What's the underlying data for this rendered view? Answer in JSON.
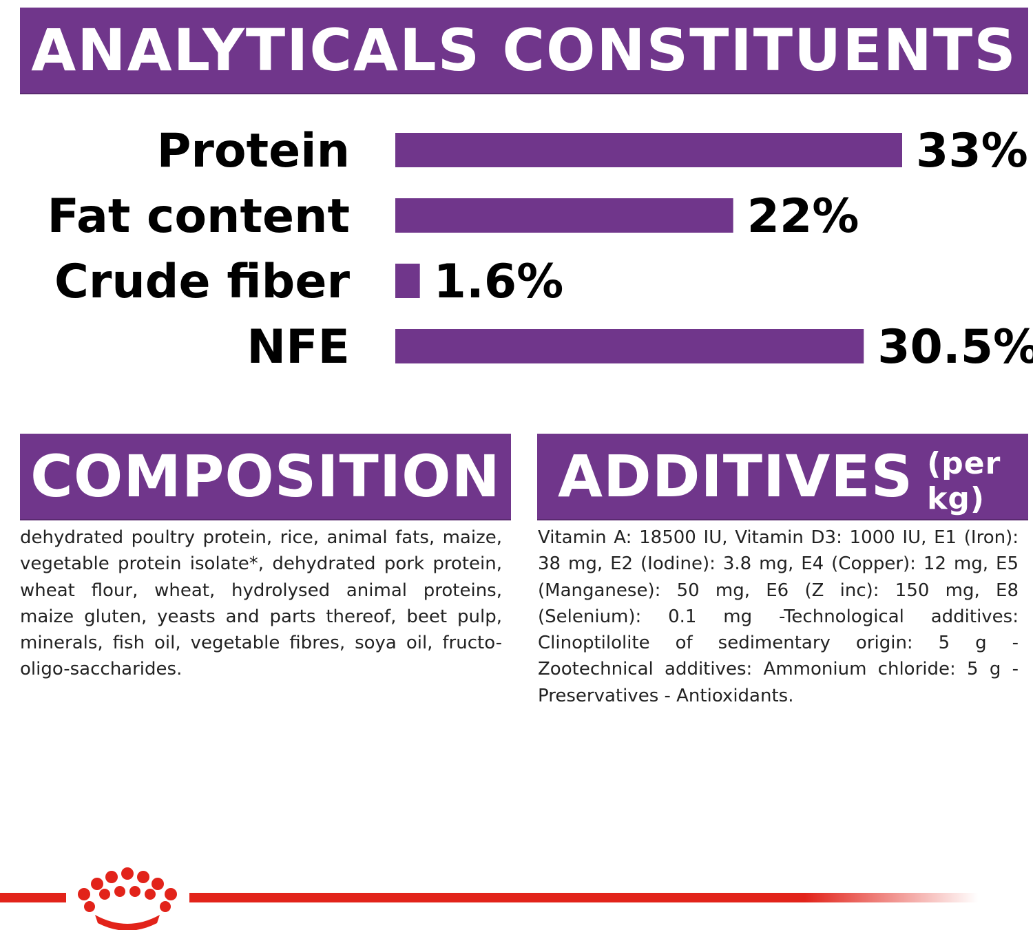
{
  "header": {
    "title": "ANALYTICALS CONSTITUENTS"
  },
  "chart_data": {
    "type": "bar",
    "orientation": "horizontal",
    "categories": [
      "Protein",
      "Fat content",
      "Crude fiber",
      "NFE"
    ],
    "values": [
      33,
      22,
      1.6,
      30.5
    ],
    "value_labels": [
      "33%",
      "22%",
      "1.6%",
      "30.5%"
    ],
    "xlim": [
      0,
      33
    ],
    "grid": false,
    "bar_color": "#70368b"
  },
  "composition": {
    "title": "COMPOSITION",
    "text": "dehydrated poultry protein, rice, animal fats, maize, vegetable protein isolate*, dehydrated pork protein, wheat flour, wheat, hydrolysed animal proteins, maize gluten, yeasts and parts thereof, beet pulp, minerals, fish oil, vegetable fibres, soya oil, fructo-oligo-saccharides."
  },
  "additives": {
    "title": "ADDITIVES",
    "subtitle": "(per kg)",
    "text": "Vitamin A: 18500 IU, Vitamin D3: 1000 IU, E1 (Iron): 38 mg, E2 (Iodine): 3.8 mg, E4 (Copper): 12 mg, E5 (Manganese): 50 mg, E6 (Z inc): 150 mg, E8 (Selenium): 0.1 mg -Technological additives: Clinoptilolite of sedimentary origin: 5 g - Zootechnical additives: Ammonium chloride: 5 g - Preservatives - Antioxidants."
  },
  "footer": {
    "logo_icon": "crown-logo-icon",
    "line_color": "#e2231a"
  }
}
